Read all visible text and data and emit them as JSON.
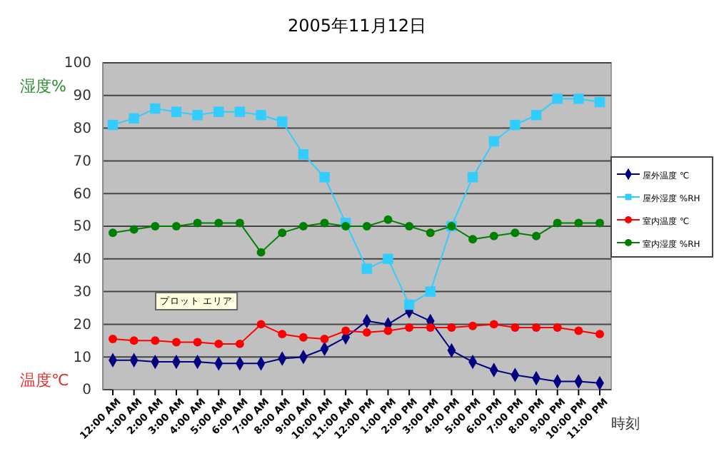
{
  "chart_data": {
    "type": "line",
    "title": "2005年11月12日",
    "xlabel": "時刻",
    "ylabel": "湿度%",
    "annotations": [
      "温度℃",
      "プロット エリア"
    ],
    "categories": [
      "12:00 AM",
      "1:00 AM",
      "2:00 AM",
      "3:00 AM",
      "4:00 AM",
      "5:00 AM",
      "6:00 AM",
      "7:00 AM",
      "8:00 AM",
      "9:00 AM",
      "10:00 AM",
      "11:00 AM",
      "12:00 PM",
      "1:00 PM",
      "2:00 PM",
      "3:00 PM",
      "4:00 PM",
      "5:00 PM",
      "6:00 PM",
      "7:00 PM",
      "8:00 PM",
      "9:00 PM",
      "10:00 PM",
      "11:00 PM"
    ],
    "series": [
      {
        "name": "屋外温度 ℃",
        "color": "#000080",
        "marker": "diamond",
        "values": [
          9,
          9,
          8.5,
          8.5,
          8.5,
          8,
          8,
          8,
          9.5,
          10,
          12.5,
          16,
          21,
          20,
          24,
          21,
          12,
          8.5,
          6,
          4.5,
          3.5,
          2.5,
          2.5,
          2
        ]
      },
      {
        "name": "屋外湿度 %RH",
        "color": "#33ccff",
        "marker": "square",
        "values": [
          81,
          83,
          86,
          85,
          84,
          85,
          85,
          84,
          82,
          72,
          65,
          51,
          37,
          40,
          26,
          30,
          50,
          65,
          76,
          81,
          84,
          89,
          89,
          88
        ]
      },
      {
        "name": "室内温度 ℃",
        "color": "#ff0000",
        "marker": "circle",
        "values": [
          15.5,
          15,
          15,
          14.5,
          14.5,
          14,
          14,
          20,
          17,
          16,
          15.5,
          18,
          17.5,
          18,
          19,
          19,
          19,
          19.5,
          20,
          19,
          19,
          19,
          18,
          17
        ]
      },
      {
        "name": "室内湿度 %RH",
        "color": "#008000",
        "marker": "circle",
        "values": [
          48,
          49,
          50,
          50,
          51,
          51,
          51,
          42,
          48,
          50,
          51,
          50,
          50,
          52,
          50,
          48,
          50,
          46,
          47,
          48,
          47,
          51,
          51,
          51
        ]
      }
    ],
    "ylim": [
      0,
      100
    ],
    "yticks": [
      0,
      10,
      20,
      30,
      40,
      50,
      60,
      70,
      80,
      90,
      100
    ],
    "grid": "y",
    "legend": "right"
  }
}
